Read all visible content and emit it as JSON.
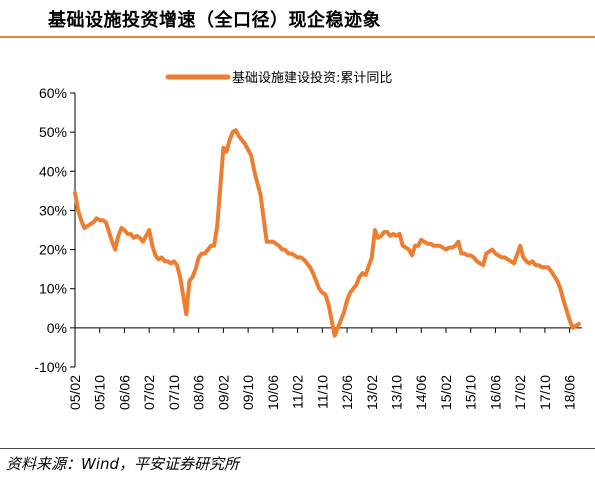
{
  "title": "基础设施投资增速（全口径）现企稳迹象",
  "source": "资料来源：Wind，平安证券研究所",
  "colors": {
    "line": "#ed7d31",
    "accent": "#e8833a",
    "axis": "#000000"
  },
  "chart_data": {
    "type": "line",
    "legend_position": "top",
    "grid": false,
    "ylim": [
      -0.1,
      0.6
    ],
    "yticks": [
      "-10%",
      "0%",
      "10%",
      "20%",
      "30%",
      "40%",
      "50%",
      "60%"
    ],
    "ytick_values": [
      -0.1,
      0.0,
      0.1,
      0.2,
      0.3,
      0.4,
      0.5,
      0.6
    ],
    "xticks": [
      "05/02",
      "05/10",
      "06/06",
      "07/02",
      "07/10",
      "08/06",
      "09/02",
      "09/10",
      "10/06",
      "11/02",
      "11/10",
      "12/06",
      "13/02",
      "13/10",
      "14/06",
      "15/02",
      "15/10",
      "16/06",
      "17/02",
      "17/10",
      "18/06"
    ],
    "series": [
      {
        "name": "基础设施建设投资:累计同比",
        "points": [
          [
            "05/02",
            0.345
          ],
          [
            "05/03",
            0.3
          ],
          [
            "05/04",
            0.275
          ],
          [
            "05/05",
            0.255
          ],
          [
            "05/06",
            0.26
          ],
          [
            "05/07",
            0.265
          ],
          [
            "05/08",
            0.27
          ],
          [
            "05/09",
            0.28
          ],
          [
            "05/10",
            0.275
          ],
          [
            "05/11",
            0.275
          ],
          [
            "05/12",
            0.27
          ],
          [
            "06/02",
            0.22
          ],
          [
            "06/03",
            0.2
          ],
          [
            "06/04",
            0.235
          ],
          [
            "06/05",
            0.255
          ],
          [
            "06/06",
            0.25
          ],
          [
            "06/07",
            0.24
          ],
          [
            "06/08",
            0.24
          ],
          [
            "06/09",
            0.23
          ],
          [
            "06/10",
            0.235
          ],
          [
            "06/11",
            0.23
          ],
          [
            "06/12",
            0.22
          ],
          [
            "07/02",
            0.25
          ],
          [
            "07/03",
            0.21
          ],
          [
            "07/04",
            0.185
          ],
          [
            "07/05",
            0.175
          ],
          [
            "07/06",
            0.18
          ],
          [
            "07/07",
            0.17
          ],
          [
            "07/08",
            0.17
          ],
          [
            "07/09",
            0.165
          ],
          [
            "07/10",
            0.17
          ],
          [
            "07/11",
            0.16
          ],
          [
            "07/12",
            0.13
          ],
          [
            "08/02",
            0.035
          ],
          [
            "08/03",
            0.12
          ],
          [
            "08/04",
            0.13
          ],
          [
            "08/05",
            0.15
          ],
          [
            "08/06",
            0.18
          ],
          [
            "08/07",
            0.19
          ],
          [
            "08/08",
            0.19
          ],
          [
            "08/09",
            0.2
          ],
          [
            "08/10",
            0.21
          ],
          [
            "08/11",
            0.21
          ],
          [
            "08/12",
            0.26
          ],
          [
            "09/02",
            0.46
          ],
          [
            "09/03",
            0.45
          ],
          [
            "09/04",
            0.48
          ],
          [
            "09/05",
            0.5
          ],
          [
            "09/06",
            0.505
          ],
          [
            "09/07",
            0.49
          ],
          [
            "09/08",
            0.48
          ],
          [
            "09/09",
            0.47
          ],
          [
            "09/10",
            0.455
          ],
          [
            "09/11",
            0.44
          ],
          [
            "09/12",
            0.4
          ],
          [
            "10/02",
            0.34
          ],
          [
            "10/03",
            0.28
          ],
          [
            "10/04",
            0.22
          ],
          [
            "10/05",
            0.22
          ],
          [
            "10/06",
            0.22
          ],
          [
            "10/07",
            0.215
          ],
          [
            "10/08",
            0.21
          ],
          [
            "10/09",
            0.2
          ],
          [
            "10/10",
            0.2
          ],
          [
            "10/11",
            0.19
          ],
          [
            "10/12",
            0.19
          ],
          [
            "11/02",
            0.18
          ],
          [
            "11/03",
            0.18
          ],
          [
            "11/04",
            0.175
          ],
          [
            "11/05",
            0.165
          ],
          [
            "11/06",
            0.155
          ],
          [
            "11/07",
            0.14
          ],
          [
            "11/08",
            0.12
          ],
          [
            "11/09",
            0.1
          ],
          [
            "11/10",
            0.09
          ],
          [
            "11/11",
            0.085
          ],
          [
            "11/12",
            0.06
          ],
          [
            "12/02",
            -0.02
          ],
          [
            "12/03",
            0.0
          ],
          [
            "12/04",
            0.02
          ],
          [
            "12/05",
            0.04
          ],
          [
            "12/06",
            0.07
          ],
          [
            "12/07",
            0.09
          ],
          [
            "12/08",
            0.1
          ],
          [
            "12/09",
            0.11
          ],
          [
            "12/10",
            0.13
          ],
          [
            "12/11",
            0.14
          ],
          [
            "12/12",
            0.135
          ],
          [
            "13/02",
            0.18
          ],
          [
            "13/03",
            0.25
          ],
          [
            "13/04",
            0.23
          ],
          [
            "13/05",
            0.235
          ],
          [
            "13/06",
            0.245
          ],
          [
            "13/07",
            0.245
          ],
          [
            "13/08",
            0.235
          ],
          [
            "13/09",
            0.24
          ],
          [
            "13/10",
            0.235
          ],
          [
            "13/11",
            0.24
          ],
          [
            "13/12",
            0.21
          ],
          [
            "14/02",
            0.2
          ],
          [
            "14/03",
            0.185
          ],
          [
            "14/04",
            0.21
          ],
          [
            "14/05",
            0.21
          ],
          [
            "14/06",
            0.225
          ],
          [
            "14/07",
            0.22
          ],
          [
            "14/08",
            0.215
          ],
          [
            "14/09",
            0.215
          ],
          [
            "14/10",
            0.21
          ],
          [
            "14/11",
            0.21
          ],
          [
            "14/12",
            0.21
          ],
          [
            "15/02",
            0.2
          ],
          [
            "15/03",
            0.205
          ],
          [
            "15/04",
            0.205
          ],
          [
            "15/05",
            0.21
          ],
          [
            "15/06",
            0.22
          ],
          [
            "15/07",
            0.19
          ],
          [
            "15/08",
            0.19
          ],
          [
            "15/09",
            0.185
          ],
          [
            "15/10",
            0.185
          ],
          [
            "15/11",
            0.18
          ],
          [
            "15/12",
            0.17
          ],
          [
            "16/02",
            0.16
          ],
          [
            "16/03",
            0.19
          ],
          [
            "16/04",
            0.195
          ],
          [
            "16/05",
            0.2
          ],
          [
            "16/06",
            0.19
          ],
          [
            "16/07",
            0.185
          ],
          [
            "16/08",
            0.18
          ],
          [
            "16/09",
            0.18
          ],
          [
            "16/10",
            0.175
          ],
          [
            "16/11",
            0.17
          ],
          [
            "16/12",
            0.165
          ],
          [
            "17/02",
            0.21
          ],
          [
            "17/03",
            0.18
          ],
          [
            "17/04",
            0.17
          ],
          [
            "17/05",
            0.165
          ],
          [
            "17/06",
            0.17
          ],
          [
            "17/07",
            0.16
          ],
          [
            "17/08",
            0.16
          ],
          [
            "17/09",
            0.155
          ],
          [
            "17/10",
            0.155
          ],
          [
            "17/11",
            0.155
          ],
          [
            "17/12",
            0.145
          ],
          [
            "18/02",
            0.12
          ],
          [
            "18/03",
            0.1
          ],
          [
            "18/04",
            0.07
          ],
          [
            "18/05",
            0.045
          ],
          [
            "18/06",
            0.02
          ],
          [
            "18/07",
            0.0
          ],
          [
            "18/08",
            0.005
          ],
          [
            "18/09",
            0.01
          ]
        ]
      }
    ]
  }
}
